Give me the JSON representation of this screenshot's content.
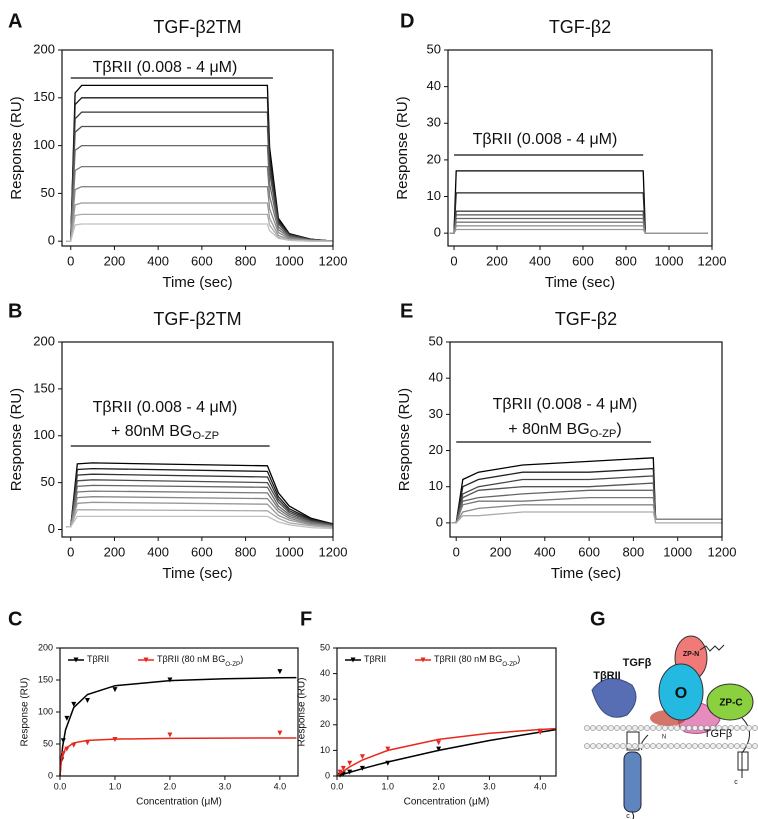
{
  "chart_data": [
    {
      "type": "line",
      "panel": "A",
      "title": "TGF-β2TM",
      "xlabel": "Time (sec)",
      "ylabel": "Response (RU)",
      "annotation": [
        "TβRII (0.008 - 4 μM)"
      ],
      "xlim": [
        -40,
        1200
      ],
      "ylim": [
        -5,
        200
      ],
      "xticks": [
        0,
        200,
        400,
        600,
        800,
        1000,
        1200
      ],
      "yticks": [
        0,
        50,
        100,
        150,
        200
      ],
      "x": [
        -20,
        0,
        20,
        50,
        900,
        910,
        950,
        1000,
        1100,
        1200
      ],
      "series": [
        {
          "color": "#000000",
          "values": [
            0,
            0,
            155,
            163,
            163,
            98,
            24,
            8,
            2,
            0
          ]
        },
        {
          "color": "#1a1a1a",
          "values": [
            0,
            0,
            143,
            150,
            150,
            90,
            22,
            7,
            2,
            0
          ]
        },
        {
          "color": "#333333",
          "values": [
            0,
            0,
            128,
            135,
            135,
            81,
            20,
            7,
            2,
            0
          ]
        },
        {
          "color": "#4d4d4d",
          "values": [
            0,
            0,
            114,
            120,
            120,
            72,
            18,
            6,
            1,
            0
          ]
        },
        {
          "color": "#666666",
          "values": [
            0,
            0,
            95,
            100,
            100,
            60,
            15,
            5,
            1,
            0
          ]
        },
        {
          "color": "#777777",
          "values": [
            0,
            0,
            74,
            78,
            78,
            47,
            12,
            4,
            1,
            0
          ]
        },
        {
          "color": "#888888",
          "values": [
            0,
            0,
            54,
            57,
            57,
            34,
            9,
            3,
            1,
            0
          ]
        },
        {
          "color": "#999999",
          "values": [
            0,
            0,
            38,
            40,
            40,
            24,
            6,
            2,
            1,
            0
          ]
        },
        {
          "color": "#aaaaaa",
          "values": [
            0,
            0,
            27,
            28,
            28,
            17,
            4,
            1,
            0,
            0
          ]
        },
        {
          "color": "#c0c0c0",
          "values": [
            0,
            0,
            17,
            18,
            18,
            11,
            3,
            1,
            0,
            0
          ]
        }
      ]
    },
    {
      "type": "line",
      "panel": "B",
      "title": "TGF-β2TM",
      "xlabel": "Time (sec)",
      "ylabel": "Response (RU)",
      "annotation": [
        "TβRII (0.008 - 4 μM)",
        [
          "+ 80nM BG",
          "O-ZP"
        ]
      ],
      "xlim": [
        -40,
        1200
      ],
      "ylim": [
        -8,
        200
      ],
      "xticks": [
        0,
        200,
        400,
        600,
        800,
        1000,
        1200
      ],
      "yticks": [
        0,
        50,
        100,
        150,
        200
      ],
      "x": [
        -20,
        0,
        30,
        100,
        900,
        950,
        1000,
        1100,
        1200
      ],
      "series": [
        {
          "color": "#000000",
          "values": [
            3,
            3,
            70,
            71,
            68,
            39,
            25,
            12,
            6
          ]
        },
        {
          "color": "#1a1a1a",
          "values": [
            3,
            3,
            64,
            65,
            62,
            35,
            22,
            11,
            6
          ]
        },
        {
          "color": "#333333",
          "values": [
            3,
            3,
            58,
            59,
            56,
            32,
            20,
            10,
            5
          ]
        },
        {
          "color": "#4d4d4d",
          "values": [
            3,
            3,
            52,
            53,
            50,
            29,
            18,
            9,
            5
          ]
        },
        {
          "color": "#666666",
          "values": [
            3,
            3,
            46,
            47,
            45,
            25,
            16,
            8,
            4
          ]
        },
        {
          "color": "#777777",
          "values": [
            3,
            3,
            40,
            41,
            39,
            22,
            14,
            7,
            4
          ]
        },
        {
          "color": "#888888",
          "values": [
            3,
            3,
            34,
            35,
            33,
            19,
            12,
            6,
            3
          ]
        },
        {
          "color": "#999999",
          "values": [
            3,
            3,
            28,
            29,
            27,
            15,
            10,
            5,
            3
          ]
        },
        {
          "color": "#aaaaaa",
          "values": [
            3,
            3,
            21,
            21,
            20,
            12,
            7,
            4,
            2
          ]
        },
        {
          "color": "#c0c0c0",
          "values": [
            3,
            3,
            14,
            14,
            14,
            8,
            5,
            2,
            1
          ]
        }
      ]
    },
    {
      "type": "scatter",
      "panel": "C",
      "xlabel": "Concentration (μM)",
      "ylabel": "Response (RU)",
      "xlim": [
        0,
        4.33
      ],
      "ylim": [
        0,
        200
      ],
      "xticks": [
        {
          "value": 0,
          "label": "0.0"
        },
        {
          "value": 1,
          "label": "1.0"
        },
        {
          "value": 2,
          "label": "2.0"
        },
        {
          "value": 3,
          "label": "3.0"
        },
        {
          "value": 4,
          "label": "4.0"
        }
      ],
      "yticks": [
        0,
        50,
        100,
        150,
        200
      ],
      "series": [
        {
          "name": [
            "TβRII"
          ],
          "color": "#000000",
          "x": [
            0.03,
            0.06,
            0.125,
            0.25,
            0.5,
            1,
            2,
            4
          ],
          "values": [
            25,
            55,
            90,
            112,
            118,
            135,
            150,
            163
          ],
          "fit_x": [
            0,
            0.02,
            0.05,
            0.1,
            0.25,
            0.5,
            1,
            2,
            3,
            4,
            4.3
          ],
          "fit_values": [
            0,
            22.6,
            46.5,
            71.8,
            106.8,
            127.4,
            141.1,
            149.1,
            151.9,
            153.4,
            153.7
          ]
        },
        {
          "name": [
            "TβRII (80 nM BG",
            "O-ZP",
            ")"
          ],
          "color": "#e8281e",
          "x": [
            0.03,
            0.06,
            0.125,
            0.25,
            0.5,
            1,
            2,
            4
          ],
          "values": [
            28,
            35,
            42,
            48,
            52,
            57,
            64,
            67
          ],
          "fit_x": [
            0,
            0.02,
            0.05,
            0.1,
            0.25,
            0.5,
            1,
            2,
            3,
            4,
            4.3
          ],
          "fit_values": [
            0,
            20,
            33.3,
            42.9,
            51.7,
            55.6,
            57.7,
            58.8,
            59.2,
            59.4,
            59.4
          ]
        }
      ]
    },
    {
      "type": "line",
      "panel": "D",
      "title": "TGF-β2",
      "xlabel": "Time (sec)",
      "ylabel": "Response (RU)",
      "annotation": [
        "TβRII (0.008 - 4 μM)"
      ],
      "xlim": [
        -28,
        1200
      ],
      "ylim": [
        -3.5,
        50
      ],
      "xticks": [
        0,
        200,
        400,
        600,
        800,
        1000,
        1200
      ],
      "yticks": [
        0,
        10,
        20,
        30,
        40,
        50
      ],
      "x": [
        -20,
        0,
        10,
        30,
        880,
        890,
        920,
        1050,
        1180
      ],
      "series": [
        {
          "color": "#000000",
          "values": [
            0,
            0,
            17,
            17,
            17,
            0,
            0,
            0,
            0
          ]
        },
        {
          "color": "#222222",
          "values": [
            0,
            0,
            11,
            11,
            11,
            0,
            0,
            0,
            0
          ]
        },
        {
          "color": "#444444",
          "values": [
            0,
            0,
            6,
            6,
            6,
            0,
            0,
            0,
            0
          ]
        },
        {
          "color": "#555555",
          "values": [
            0,
            0,
            5,
            5,
            5,
            0,
            0,
            0,
            0
          ]
        },
        {
          "color": "#666666",
          "values": [
            0,
            0,
            4,
            4,
            4,
            0,
            0,
            0,
            0
          ]
        },
        {
          "color": "#777777",
          "values": [
            0,
            0,
            3,
            3,
            3,
            0,
            0,
            0,
            0
          ]
        },
        {
          "color": "#888888",
          "values": [
            0,
            0,
            2,
            2,
            2,
            0,
            0,
            0,
            0
          ]
        },
        {
          "color": "#999999",
          "values": [
            0,
            0,
            1,
            1,
            1,
            0,
            0,
            0,
            0
          ]
        }
      ]
    },
    {
      "type": "line",
      "panel": "E",
      "title": "TGF-β2",
      "xlabel": "Time (sec)",
      "ylabel": "Response (RU)",
      "annotation": [
        "TβRII (0.008 - 4 μM)",
        [
          "+ 80nM BG",
          "O-ZP",
          ")"
        ]
      ],
      "xlim": [
        -28,
        1200
      ],
      "ylim": [
        -3.9,
        50
      ],
      "xticks": [
        0,
        200,
        400,
        600,
        800,
        1000,
        1200
      ],
      "yticks": [
        0,
        10,
        20,
        30,
        40,
        50
      ],
      "x": [
        -20,
        0,
        30,
        100,
        300,
        600,
        890,
        900,
        950,
        1200
      ],
      "series": [
        {
          "color": "#000000",
          "values": [
            0,
            0,
            12,
            14,
            16,
            17,
            18,
            1,
            1,
            1
          ]
        },
        {
          "color": "#222222",
          "values": [
            0,
            0,
            10,
            12,
            14,
            14,
            15,
            1,
            1,
            1
          ]
        },
        {
          "color": "#444444",
          "values": [
            0,
            0,
            8,
            10,
            12,
            12,
            13,
            1,
            1,
            1
          ]
        },
        {
          "color": "#555555",
          "values": [
            0,
            0,
            7,
            9,
            10,
            10,
            11,
            1,
            1,
            1
          ]
        },
        {
          "color": "#666666",
          "values": [
            0,
            0,
            6,
            7,
            8,
            9,
            9,
            1,
            1,
            1
          ]
        },
        {
          "color": "#777777",
          "values": [
            0,
            0,
            5,
            6,
            6,
            7,
            7,
            1,
            1,
            1
          ]
        },
        {
          "color": "#888888",
          "values": [
            0,
            0,
            3,
            4,
            5,
            5,
            5,
            1,
            1,
            1
          ]
        },
        {
          "color": "#aaaaaa",
          "values": [
            0,
            0,
            2,
            2,
            3,
            3,
            3,
            0,
            0,
            0
          ]
        }
      ]
    },
    {
      "type": "scatter",
      "panel": "F",
      "xlabel": "Concentration (μM)",
      "ylabel": "Response (RU)",
      "xlim": [
        0,
        4.31
      ],
      "ylim": [
        0,
        50
      ],
      "xticks": [
        {
          "value": 0,
          "label": "0.0"
        },
        {
          "value": 1,
          "label": "1.0"
        },
        {
          "value": 2,
          "label": "2.0"
        },
        {
          "value": 3,
          "label": "3.0"
        },
        {
          "value": 4,
          "label": "4.0"
        }
      ],
      "yticks": [
        0,
        10,
        20,
        30,
        40,
        50
      ],
      "series": [
        {
          "name": [
            "TβRII"
          ],
          "color": "#000000",
          "x": [
            0.06,
            0.125,
            0.25,
            0.5,
            1,
            2,
            4
          ],
          "values": [
            0.3,
            0.8,
            1.5,
            3,
            5,
            10.5,
            17.5
          ],
          "fit_x": [
            0,
            0.5,
            1,
            2,
            3,
            4,
            4.3
          ],
          "fit_values": [
            0,
            2.86,
            5.45,
            10,
            13.85,
            17.14,
            18.04
          ]
        },
        {
          "name": [
            "TβRII (80 nM BG",
            "O-ZP",
            ")"
          ],
          "color": "#e8281e",
          "x": [
            0.06,
            0.125,
            0.25,
            0.5,
            1,
            2,
            4
          ],
          "values": [
            1.5,
            3,
            5,
            7.5,
            10.5,
            13,
            17
          ],
          "fit_x": [
            0,
            0.1,
            0.25,
            0.5,
            1,
            2,
            3,
            4,
            4.3
          ],
          "fit_values": [
            0,
            1.56,
            3.57,
            6.25,
            10,
            14.29,
            16.67,
            18.18,
            18.53
          ]
        }
      ]
    }
  ],
  "diagram": {
    "panel": "G",
    "labels": [
      "TGFβ",
      "ZP-N",
      "TβRII",
      "O",
      "ZP-C",
      "TGFβ",
      "N",
      "c",
      "c"
    ]
  }
}
